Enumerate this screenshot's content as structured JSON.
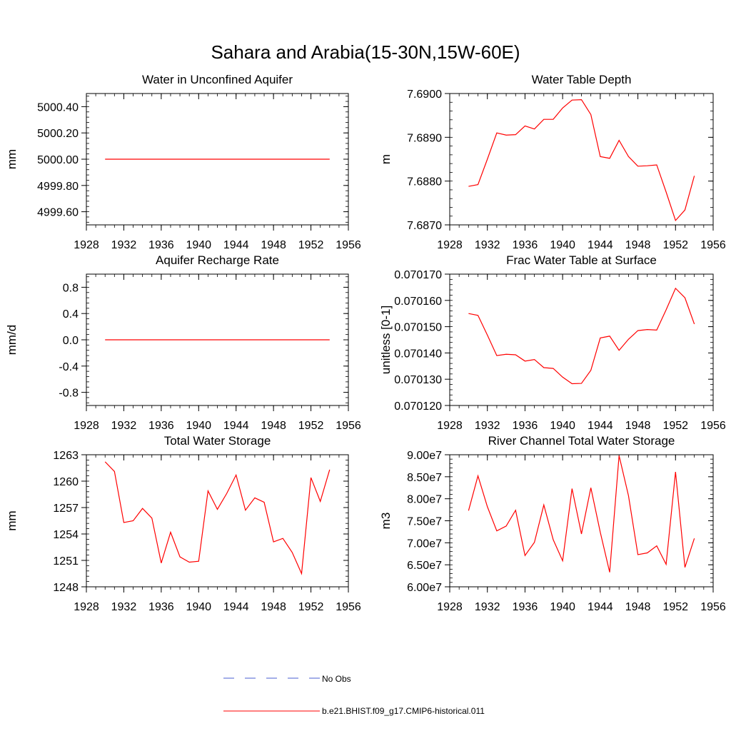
{
  "page": {
    "title": "Sahara and Arabia(15-30N,15W-60E)"
  },
  "colors": {
    "model_line": "#ff0000",
    "obs_line": "#4a5fd0",
    "axis": "#000000"
  },
  "legend": {
    "obs_label": "No Obs",
    "model_label": "b.e21.BHIST.f09_g17.CMIP6-historical.011"
  },
  "chart_data": [
    {
      "type": "line",
      "title": "Water in Unconfined Aquifer",
      "ylabel": "mm",
      "xlim": [
        1928,
        1956
      ],
      "ylim": [
        4999.5,
        5000.5
      ],
      "xticks": [
        1928,
        1932,
        1936,
        1940,
        1944,
        1948,
        1952,
        1956
      ],
      "xtick_labels": [
        "1928",
        "1932",
        "1936",
        "1940",
        "1944",
        "1948",
        "1952",
        "1956"
      ],
      "yticks": [
        4999.6,
        4999.8,
        5000.0,
        5000.2,
        5000.4
      ],
      "ytick_labels": [
        "4999.60",
        "4999.80",
        "5000.00",
        "5000.20",
        "5000.40"
      ],
      "x": [
        1930,
        1931,
        1932,
        1933,
        1934,
        1935,
        1936,
        1937,
        1938,
        1939,
        1940,
        1941,
        1942,
        1943,
        1944,
        1945,
        1946,
        1947,
        1948,
        1949,
        1950,
        1951,
        1952,
        1953,
        1954
      ],
      "series": [
        {
          "values": [
            5000.0,
            5000.0,
            5000.0,
            5000.0,
            5000.0,
            5000.0,
            5000.0,
            5000.0,
            5000.0,
            5000.0,
            5000.0,
            5000.0,
            5000.0,
            5000.0,
            5000.0,
            5000.0,
            5000.0,
            5000.0,
            5000.0,
            5000.0,
            5000.0,
            5000.0,
            5000.0,
            5000.0,
            5000.0
          ]
        }
      ]
    },
    {
      "type": "line",
      "title": "Water Table Depth",
      "ylabel": "m",
      "xlim": [
        1928,
        1956
      ],
      "ylim": [
        7.687,
        7.69
      ],
      "xticks": [
        1928,
        1932,
        1936,
        1940,
        1944,
        1948,
        1952,
        1956
      ],
      "xtick_labels": [
        "1928",
        "1932",
        "1936",
        "1940",
        "1944",
        "1948",
        "1952",
        "1956"
      ],
      "yticks": [
        7.687,
        7.688,
        7.689,
        7.69
      ],
      "ytick_labels": [
        "7.6870",
        "7.6880",
        "7.6890",
        "7.6900"
      ],
      "x": [
        1930,
        1931,
        1932,
        1933,
        1934,
        1935,
        1936,
        1937,
        1938,
        1939,
        1940,
        1941,
        1942,
        1943,
        1944,
        1945,
        1946,
        1947,
        1948,
        1949,
        1950,
        1951,
        1952,
        1953,
        1954
      ],
      "series": [
        {
          "values": [
            7.68788,
            7.68792,
            7.6885,
            7.6891,
            7.68905,
            7.68906,
            7.68926,
            7.68919,
            7.68941,
            7.68941,
            7.68967,
            7.68985,
            7.68986,
            7.68952,
            7.68856,
            7.68852,
            7.68893,
            7.68856,
            7.68834,
            7.68835,
            7.68837,
            7.68775,
            7.6871,
            7.68734,
            7.68812
          ]
        }
      ]
    },
    {
      "type": "line",
      "title": "Aquifer Recharge Rate",
      "ylabel": "mm/d",
      "xlim": [
        1928,
        1956
      ],
      "ylim": [
        -1.0,
        1.0
      ],
      "xticks": [
        1928,
        1932,
        1936,
        1940,
        1944,
        1948,
        1952,
        1956
      ],
      "xtick_labels": [
        "1928",
        "1932",
        "1936",
        "1940",
        "1944",
        "1948",
        "1952",
        "1956"
      ],
      "yticks": [
        -0.8,
        -0.4,
        0.0,
        0.4,
        0.8
      ],
      "ytick_labels": [
        "-0.8",
        "-0.4",
        "0.0",
        "0.4",
        "0.8"
      ],
      "x": [
        1930,
        1931,
        1932,
        1933,
        1934,
        1935,
        1936,
        1937,
        1938,
        1939,
        1940,
        1941,
        1942,
        1943,
        1944,
        1945,
        1946,
        1947,
        1948,
        1949,
        1950,
        1951,
        1952,
        1953,
        1954
      ],
      "series": [
        {
          "values": [
            0.0,
            0.0,
            0.0,
            0.0,
            0.0,
            0.0,
            0.0,
            0.0,
            0.0,
            0.0,
            0.0,
            0.0,
            0.0,
            0.0,
            0.0,
            0.0,
            0.0,
            0.0,
            0.0,
            0.0,
            0.0,
            0.0,
            0.0,
            0.0,
            0.0
          ]
        }
      ]
    },
    {
      "type": "line",
      "title": "Frac Water Table at Surface",
      "ylabel": "unitless [0-1]",
      "xlim": [
        1928,
        1956
      ],
      "ylim": [
        0.07012,
        0.07017
      ],
      "xticks": [
        1928,
        1932,
        1936,
        1940,
        1944,
        1948,
        1952,
        1956
      ],
      "xtick_labels": [
        "1928",
        "1932",
        "1936",
        "1940",
        "1944",
        "1948",
        "1952",
        "1956"
      ],
      "yticks": [
        0.07012,
        0.07013,
        0.07014,
        0.07015,
        0.07016,
        0.07017
      ],
      "ytick_labels": [
        "0.070120",
        "0.070130",
        "0.070140",
        "0.070150",
        "0.070160",
        "0.070170"
      ],
      "x": [
        1930,
        1931,
        1932,
        1933,
        1934,
        1935,
        1936,
        1937,
        1938,
        1939,
        1940,
        1941,
        1942,
        1943,
        1944,
        1945,
        1946,
        1947,
        1948,
        1949,
        1950,
        1951,
        1952,
        1953,
        1954
      ],
      "series": [
        {
          "values": [
            0.070155,
            0.0701543,
            0.0701468,
            0.070139,
            0.0701395,
            0.0701393,
            0.0701369,
            0.0701375,
            0.0701344,
            0.0701341,
            0.0701308,
            0.0701283,
            0.0701284,
            0.0701334,
            0.0701457,
            0.0701464,
            0.070141,
            0.0701452,
            0.0701485,
            0.0701489,
            0.0701487,
            0.0701564,
            0.0701646,
            0.070161,
            0.070151
          ]
        }
      ]
    },
    {
      "type": "line",
      "title": "Total Water Storage",
      "ylabel": "mm",
      "xlim": [
        1928,
        1956
      ],
      "ylim": [
        1248,
        1263
      ],
      "xticks": [
        1928,
        1932,
        1936,
        1940,
        1944,
        1948,
        1952,
        1956
      ],
      "xtick_labels": [
        "1928",
        "1932",
        "1936",
        "1940",
        "1944",
        "1948",
        "1952",
        "1956"
      ],
      "yticks": [
        1248,
        1251,
        1254,
        1257,
        1260,
        1263
      ],
      "ytick_labels": [
        "1248",
        "1251",
        "1254",
        "1257",
        "1260",
        "1263"
      ],
      "x": [
        1930,
        1931,
        1932,
        1933,
        1934,
        1935,
        1936,
        1937,
        1938,
        1939,
        1940,
        1941,
        1942,
        1943,
        1944,
        1945,
        1946,
        1947,
        1948,
        1949,
        1950,
        1951,
        1952,
        1953,
        1954
      ],
      "series": [
        {
          "values": [
            1262.2,
            1261.1,
            1255.3,
            1255.5,
            1256.9,
            1255.8,
            1250.7,
            1254.2,
            1251.4,
            1250.8,
            1250.9,
            1258.9,
            1256.8,
            1258.6,
            1260.7,
            1256.7,
            1258.1,
            1257.6,
            1253.1,
            1253.5,
            1251.9,
            1249.5,
            1260.4,
            1257.7,
            1261.3
          ]
        }
      ]
    },
    {
      "type": "line",
      "title": "River Channel Total Water Storage",
      "ylabel": "m3",
      "xlim": [
        1928,
        1956
      ],
      "ylim": [
        60000000,
        90000000
      ],
      "xticks": [
        1928,
        1932,
        1936,
        1940,
        1944,
        1948,
        1952,
        1956
      ],
      "xtick_labels": [
        "1928",
        "1932",
        "1936",
        "1940",
        "1944",
        "1948",
        "1952",
        "1956"
      ],
      "yticks": [
        60000000,
        65000000,
        70000000,
        75000000,
        80000000,
        85000000,
        90000000
      ],
      "ytick_labels": [
        "6.00e7",
        "6.50e7",
        "7.00e7",
        "7.50e7",
        "8.00e7",
        "8.50e7",
        "9.00e7"
      ],
      "x": [
        1930,
        1931,
        1932,
        1933,
        1934,
        1935,
        1936,
        1937,
        1938,
        1939,
        1940,
        1941,
        1942,
        1943,
        1944,
        1945,
        1946,
        1947,
        1948,
        1949,
        1950,
        1951,
        1952,
        1953,
        1954
      ],
      "series": [
        {
          "values": [
            77300000,
            85200000,
            78200000,
            72700000,
            73800000,
            77400000,
            67100000,
            70100000,
            78600000,
            70700000,
            65900000,
            82300000,
            72000000,
            82500000,
            72400000,
            63300000,
            89800000,
            80700000,
            67300000,
            67700000,
            69300000,
            65100000,
            86100000,
            64400000,
            71000000
          ]
        }
      ]
    }
  ]
}
